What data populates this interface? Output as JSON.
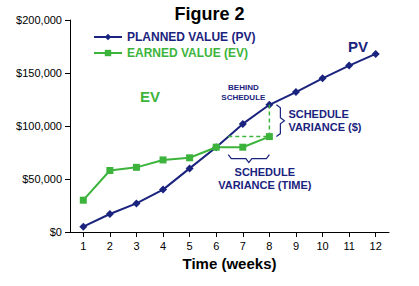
{
  "chart_data": {
    "type": "line",
    "title": "Figure 2",
    "x_label": "Time (weeks)",
    "categories": [
      "1",
      "2",
      "3",
      "4",
      "5",
      "6",
      "7",
      "8",
      "9",
      "10",
      "11",
      "12"
    ],
    "series": [
      {
        "name": "PLANNED VALUE (PV)",
        "color": "#1a237e",
        "marker": "diamond",
        "values": [
          5000,
          17000,
          27000,
          40000,
          60000,
          80000,
          102000,
          120000,
          132000,
          145000,
          157000,
          168000
        ]
      },
      {
        "name": "EARNED VALUE (EV)",
        "color": "#3cb43c",
        "marker": "square",
        "values": [
          30000,
          58000,
          61000,
          68000,
          70000,
          80000,
          80000,
          90000,
          null,
          null,
          null,
          null
        ]
      }
    ],
    "ylim": [
      0,
      200000
    ],
    "yticks": [
      {
        "value": 0,
        "label": "$0"
      },
      {
        "value": 50000,
        "label": "$50,000"
      },
      {
        "value": 100000,
        "label": "$100,000"
      },
      {
        "value": 150000,
        "label": "$150,000"
      },
      {
        "value": 200000,
        "label": "$200,000"
      }
    ],
    "grid": false,
    "legend": "upper left",
    "annotations": [
      {
        "text": "PV",
        "color": "#1a237e"
      },
      {
        "text": "EV",
        "color": "#3cb43c"
      },
      {
        "text": "BEHIND\nSCHEDULE",
        "color": "#1a237e"
      },
      {
        "text": "SCHEDULE\nVARIANCE ($)",
        "color": "#1a237e"
      },
      {
        "text": "SCHEDULE\nVARIANCE (TIME)",
        "color": "#1a237e"
      }
    ]
  }
}
